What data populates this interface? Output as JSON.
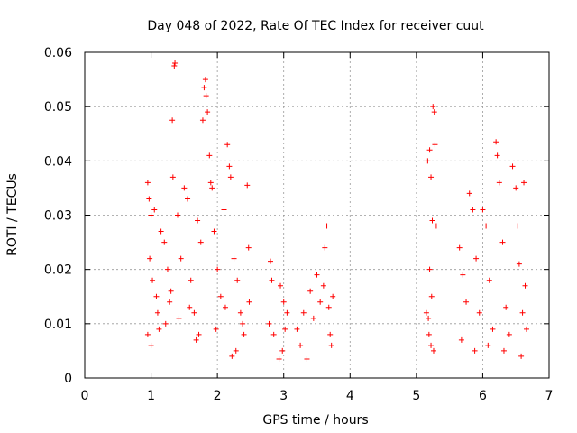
{
  "chart_data": {
    "type": "scatter",
    "title": "Day 048 of 2022, Rate Of TEC Index for receiver cuut",
    "xlabel": "GPS time / hours",
    "ylabel": "ROTI / TECUs",
    "xlim": [
      0,
      7
    ],
    "ylim": [
      0,
      0.06
    ],
    "xticks": [
      "0",
      "1",
      "2",
      "3",
      "4",
      "5",
      "6",
      "7"
    ],
    "yticks": [
      "0",
      "0.01",
      "0.02",
      "0.03",
      "0.04",
      "0.05",
      "0.06"
    ],
    "grid": true,
    "marker": "+",
    "color": "#ff0000",
    "series": [
      {
        "points": [
          [
            0.95,
            0.036
          ],
          [
            0.97,
            0.033
          ],
          [
            1.0,
            0.03
          ],
          [
            1.05,
            0.031
          ],
          [
            0.98,
            0.022
          ],
          [
            1.02,
            0.018
          ],
          [
            1.08,
            0.015
          ],
          [
            1.1,
            0.012
          ],
          [
            0.95,
            0.008
          ],
          [
            1.0,
            0.006
          ],
          [
            1.15,
            0.027
          ],
          [
            1.2,
            0.025
          ],
          [
            1.25,
            0.02
          ],
          [
            1.22,
            0.01
          ],
          [
            1.28,
            0.014
          ],
          [
            1.32,
            0.0475
          ],
          [
            1.35,
            0.0575
          ],
          [
            1.36,
            0.058
          ],
          [
            1.33,
            0.037
          ],
          [
            1.4,
            0.03
          ],
          [
            1.45,
            0.022
          ],
          [
            1.5,
            0.035
          ],
          [
            1.55,
            0.033
          ],
          [
            1.6,
            0.018
          ],
          [
            1.65,
            0.012
          ],
          [
            1.7,
            0.029
          ],
          [
            1.72,
            0.008
          ],
          [
            1.75,
            0.025
          ],
          [
            1.78,
            0.0475
          ],
          [
            1.8,
            0.0535
          ],
          [
            1.82,
            0.055
          ],
          [
            1.83,
            0.052
          ],
          [
            1.85,
            0.049
          ],
          [
            1.88,
            0.041
          ],
          [
            1.9,
            0.036
          ],
          [
            1.92,
            0.035
          ],
          [
            1.95,
            0.027
          ],
          [
            2.0,
            0.02
          ],
          [
            2.05,
            0.015
          ],
          [
            2.1,
            0.031
          ],
          [
            2.15,
            0.043
          ],
          [
            2.18,
            0.039
          ],
          [
            2.2,
            0.037
          ],
          [
            2.25,
            0.022
          ],
          [
            2.3,
            0.018
          ],
          [
            2.35,
            0.012
          ],
          [
            2.4,
            0.008
          ],
          [
            2.45,
            0.0355
          ],
          [
            2.47,
            0.024
          ],
          [
            2.48,
            0.014
          ],
          [
            1.12,
            0.009
          ],
          [
            1.3,
            0.016
          ],
          [
            1.42,
            0.011
          ],
          [
            1.58,
            0.013
          ],
          [
            1.68,
            0.007
          ],
          [
            1.98,
            0.009
          ],
          [
            2.22,
            0.004
          ],
          [
            2.28,
            0.005
          ],
          [
            2.38,
            0.01
          ],
          [
            2.12,
            0.013
          ],
          [
            2.8,
            0.0215
          ],
          [
            2.82,
            0.018
          ],
          [
            2.78,
            0.01
          ],
          [
            2.85,
            0.008
          ],
          [
            2.95,
            0.017
          ],
          [
            3.0,
            0.014
          ],
          [
            3.02,
            0.009
          ],
          [
            2.98,
            0.005
          ],
          [
            2.93,
            0.0035
          ],
          [
            3.05,
            0.012
          ],
          [
            3.2,
            0.009
          ],
          [
            3.25,
            0.006
          ],
          [
            3.3,
            0.012
          ],
          [
            3.35,
            0.0035
          ],
          [
            3.4,
            0.016
          ],
          [
            3.45,
            0.011
          ],
          [
            3.5,
            0.019
          ],
          [
            3.55,
            0.014
          ],
          [
            3.6,
            0.017
          ],
          [
            3.62,
            0.024
          ],
          [
            3.65,
            0.028
          ],
          [
            3.68,
            0.013
          ],
          [
            3.7,
            0.008
          ],
          [
            3.72,
            0.006
          ],
          [
            3.74,
            0.015
          ],
          [
            5.15,
            0.012
          ],
          [
            5.17,
            0.04
          ],
          [
            5.2,
            0.042
          ],
          [
            5.22,
            0.037
          ],
          [
            5.25,
            0.05
          ],
          [
            5.27,
            0.049
          ],
          [
            5.28,
            0.043
          ],
          [
            5.24,
            0.029
          ],
          [
            5.2,
            0.02
          ],
          [
            5.18,
            0.011
          ],
          [
            5.22,
            0.006
          ],
          [
            5.26,
            0.005
          ],
          [
            5.3,
            0.028
          ],
          [
            5.23,
            0.015
          ],
          [
            5.19,
            0.008
          ],
          [
            5.65,
            0.024
          ],
          [
            5.7,
            0.019
          ],
          [
            5.75,
            0.014
          ],
          [
            5.8,
            0.034
          ],
          [
            5.85,
            0.031
          ],
          [
            5.9,
            0.022
          ],
          [
            5.95,
            0.012
          ],
          [
            6.0,
            0.031
          ],
          [
            6.05,
            0.028
          ],
          [
            6.1,
            0.018
          ],
          [
            6.15,
            0.009
          ],
          [
            6.2,
            0.0435
          ],
          [
            6.22,
            0.041
          ],
          [
            6.25,
            0.036
          ],
          [
            6.3,
            0.025
          ],
          [
            6.35,
            0.013
          ],
          [
            6.4,
            0.008
          ],
          [
            6.45,
            0.039
          ],
          [
            6.5,
            0.035
          ],
          [
            6.52,
            0.028
          ],
          [
            6.55,
            0.021
          ],
          [
            6.6,
            0.012
          ],
          [
            6.62,
            0.036
          ],
          [
            6.64,
            0.017
          ],
          [
            6.66,
            0.009
          ],
          [
            5.68,
            0.007
          ],
          [
            5.88,
            0.005
          ],
          [
            6.08,
            0.006
          ],
          [
            6.32,
            0.005
          ],
          [
            6.58,
            0.004
          ]
        ]
      }
    ]
  }
}
